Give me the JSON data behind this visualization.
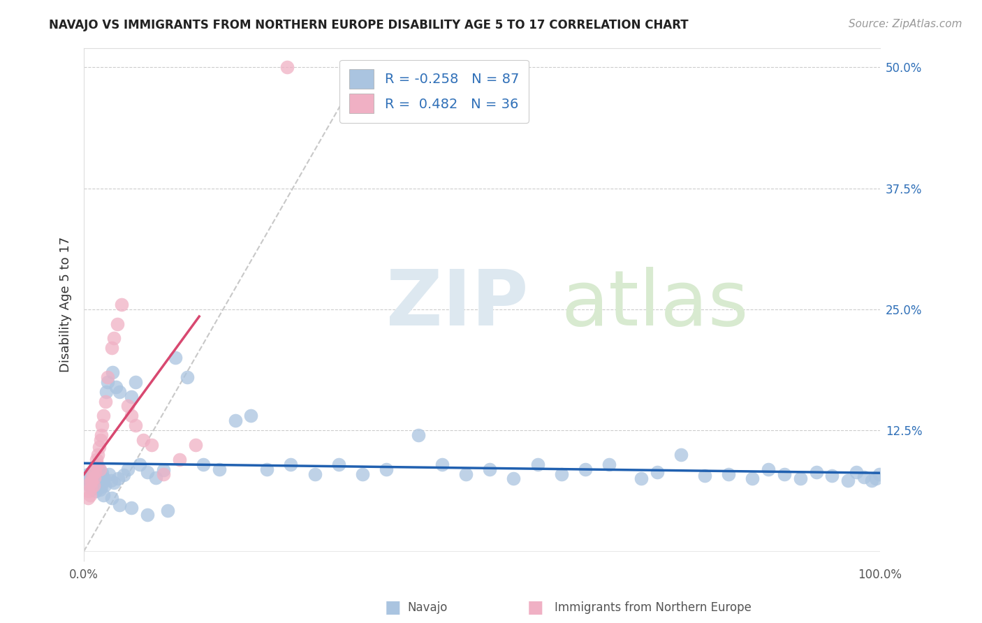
{
  "title": "NAVAJO VS IMMIGRANTS FROM NORTHERN EUROPE DISABILITY AGE 5 TO 17 CORRELATION CHART",
  "source": "Source: ZipAtlas.com",
  "ylabel": "Disability Age 5 to 17",
  "xlim": [
    0,
    1.0
  ],
  "ylim": [
    -0.01,
    0.52
  ],
  "navajo_color": "#aac4e0",
  "immigrant_color": "#f0b0c4",
  "navajo_line_color": "#2060b0",
  "immigrant_line_color": "#d84870",
  "diagonal_color": "#c8c8c8",
  "background_color": "#ffffff",
  "navajo_R": -0.258,
  "navajo_N": 87,
  "immig_R": 0.482,
  "immig_N": 36,
  "navajo_x": [
    0.005,
    0.005,
    0.007,
    0.008,
    0.009,
    0.01,
    0.01,
    0.011,
    0.012,
    0.013,
    0.014,
    0.015,
    0.015,
    0.016,
    0.017,
    0.018,
    0.019,
    0.02,
    0.02,
    0.021,
    0.022,
    0.023,
    0.024,
    0.025,
    0.026,
    0.028,
    0.03,
    0.032,
    0.034,
    0.036,
    0.038,
    0.04,
    0.043,
    0.045,
    0.05,
    0.055,
    0.06,
    0.065,
    0.07,
    0.08,
    0.09,
    0.1,
    0.115,
    0.13,
    0.15,
    0.17,
    0.19,
    0.21,
    0.23,
    0.26,
    0.29,
    0.32,
    0.35,
    0.38,
    0.42,
    0.45,
    0.48,
    0.51,
    0.54,
    0.57,
    0.6,
    0.63,
    0.66,
    0.7,
    0.72,
    0.75,
    0.78,
    0.81,
    0.84,
    0.86,
    0.88,
    0.9,
    0.92,
    0.94,
    0.96,
    0.97,
    0.98,
    0.99,
    0.995,
    0.999,
    0.015,
    0.025,
    0.035,
    0.045,
    0.06,
    0.08,
    0.105
  ],
  "navajo_y": [
    0.08,
    0.075,
    0.068,
    0.072,
    0.078,
    0.065,
    0.082,
    0.07,
    0.076,
    0.073,
    0.079,
    0.066,
    0.083,
    0.071,
    0.077,
    0.069,
    0.085,
    0.064,
    0.08,
    0.074,
    0.067,
    0.081,
    0.072,
    0.076,
    0.068,
    0.165,
    0.175,
    0.08,
    0.073,
    0.185,
    0.071,
    0.17,
    0.075,
    0.165,
    0.079,
    0.085,
    0.16,
    0.175,
    0.09,
    0.082,
    0.076,
    0.084,
    0.2,
    0.18,
    0.09,
    0.085,
    0.135,
    0.14,
    0.085,
    0.09,
    0.08,
    0.09,
    0.08,
    0.085,
    0.12,
    0.09,
    0.08,
    0.085,
    0.075,
    0.09,
    0.08,
    0.085,
    0.09,
    0.075,
    0.082,
    0.1,
    0.078,
    0.08,
    0.075,
    0.085,
    0.08,
    0.075,
    0.082,
    0.078,
    0.073,
    0.082,
    0.077,
    0.073,
    0.075,
    0.08,
    0.062,
    0.058,
    0.055,
    0.048,
    0.045,
    0.038,
    0.042
  ],
  "immig_x": [
    0.005,
    0.006,
    0.007,
    0.008,
    0.009,
    0.01,
    0.01,
    0.011,
    0.012,
    0.013,
    0.014,
    0.015,
    0.016,
    0.017,
    0.018,
    0.019,
    0.02,
    0.021,
    0.022,
    0.023,
    0.025,
    0.027,
    0.03,
    0.035,
    0.038,
    0.042,
    0.047,
    0.055,
    0.06,
    0.065,
    0.075,
    0.085,
    0.1,
    0.12,
    0.14,
    0.255
  ],
  "immig_y": [
    0.055,
    0.062,
    0.07,
    0.058,
    0.065,
    0.075,
    0.072,
    0.08,
    0.068,
    0.076,
    0.082,
    0.088,
    0.095,
    0.09,
    0.1,
    0.108,
    0.085,
    0.115,
    0.12,
    0.13,
    0.14,
    0.155,
    0.18,
    0.21,
    0.22,
    0.235,
    0.255,
    0.15,
    0.14,
    0.13,
    0.115,
    0.11,
    0.08,
    0.095,
    0.11,
    0.5
  ]
}
